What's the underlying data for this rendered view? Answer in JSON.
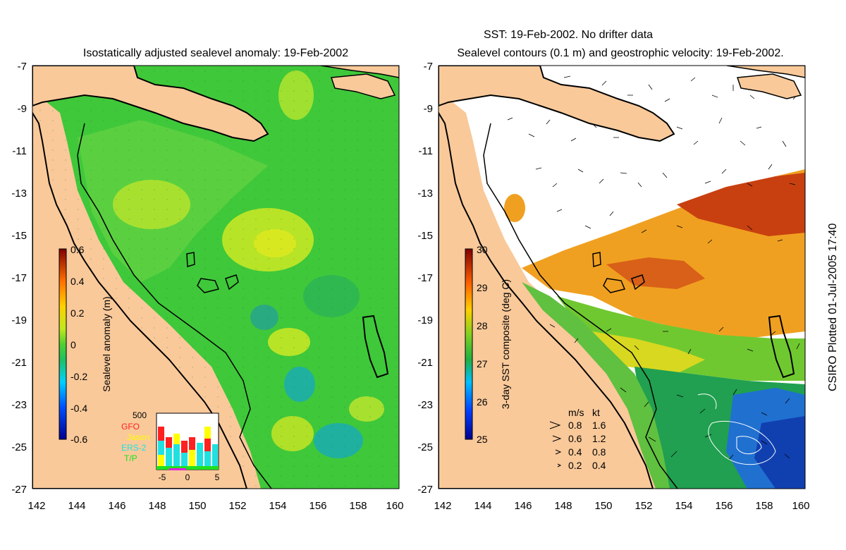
{
  "left_panel": {
    "title": "Isostatically adjusted sealevel anomaly: 19-Feb-2002",
    "lat_ticks": [
      "-7",
      "-9",
      "-11",
      "-13",
      "-15",
      "-17",
      "-19",
      "-21",
      "-23",
      "-25",
      "-27"
    ],
    "lon_ticks": [
      "142",
      "144",
      "146",
      "148",
      "150",
      "152",
      "154",
      "156",
      "158",
      "160"
    ],
    "colorbar": {
      "label": "Sealevel anomaly (m)",
      "ticks": [
        "0.6",
        "0.4",
        "0.2",
        "0",
        "-0.2",
        "-0.4",
        "-0.6"
      ],
      "min": -0.6,
      "max": 0.6
    },
    "inset": {
      "top_label": "500",
      "legend": [
        {
          "name": "GFO",
          "color": "#ff2020"
        },
        {
          "name": "Jason",
          "color": "#ffff00"
        },
        {
          "name": "ERS-2",
          "color": "#20e0e0"
        },
        {
          "name": "T/P",
          "color": "#20e020"
        }
      ],
      "x_ticks": [
        "-5",
        "0",
        "5"
      ]
    }
  },
  "right_panel": {
    "title_line1": "SST: 19-Feb-2002. No drifter data",
    "title_line2": "Sealevel contours (0.1 m) and geostrophic velocity: 19-Feb-2002.",
    "lat_ticks": [
      "-7",
      "-9",
      "-11",
      "-13",
      "-15",
      "-17",
      "-19",
      "-21",
      "-23",
      "-25",
      "-27"
    ],
    "lon_ticks": [
      "142",
      "144",
      "146",
      "148",
      "150",
      "152",
      "154",
      "156",
      "158",
      "160"
    ],
    "colorbar": {
      "label": "3-day SST composite (deg C)",
      "ticks": [
        "30",
        "29",
        "28",
        "27",
        "26",
        "25"
      ],
      "min": 25,
      "max": 30
    },
    "velocity_legend": {
      "header_ms": "m/s",
      "header_kt": "kt",
      "rows": [
        {
          "ms": "0.8",
          "kt": "1.6"
        },
        {
          "ms": "0.6",
          "kt": "1.2"
        },
        {
          "ms": "0.4",
          "kt": "0.8"
        },
        {
          "ms": "0.2",
          "kt": "0.4"
        }
      ]
    }
  },
  "credit": "CSIRO Plotted 01-Jul-2005 17:40",
  "colors": {
    "land": "#f9c99a",
    "sea_level_green": "#3fc83a",
    "sst_white": "#ffffff"
  }
}
